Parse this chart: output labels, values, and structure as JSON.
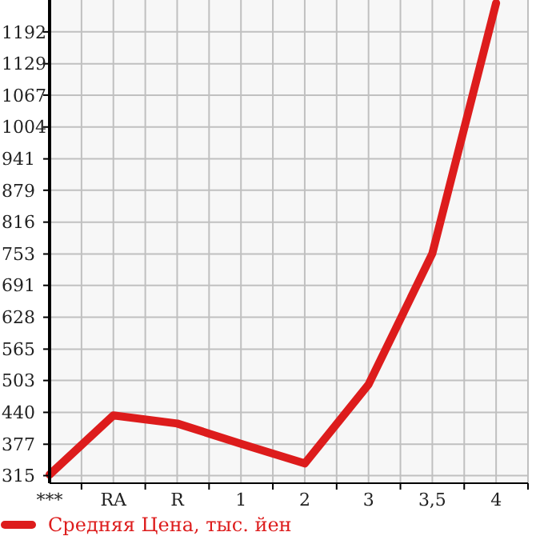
{
  "chart_data": {
    "type": "line",
    "categories": [
      "***",
      "RA",
      "R",
      "1",
      "2",
      "3",
      "3,5",
      "4"
    ],
    "series": [
      {
        "name": "Средняя Цена, тыс. йен",
        "color": "#dd1c1c",
        "values": [
          317,
          434,
          418,
          378,
          339,
          495,
          754,
          1249
        ]
      }
    ],
    "ylim": [
      300,
      1255
    ],
    "yticks": [
      315,
      377,
      440,
      503,
      565,
      628,
      691,
      753,
      816,
      879,
      941,
      1004,
      1067,
      1129,
      1192
    ],
    "grid": true,
    "legend": "bottom",
    "marker": "none",
    "line_style": "solid"
  }
}
